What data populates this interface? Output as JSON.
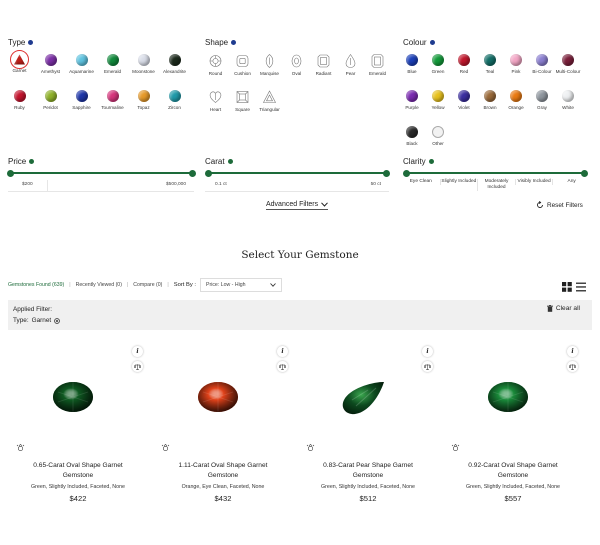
{
  "filters": {
    "type": {
      "title": "Type",
      "items": [
        {
          "label": "Garnet",
          "color": "#c0201a",
          "selected": true
        },
        {
          "label": "Amethyst",
          "color": "#7b2fa6"
        },
        {
          "label": "Aquamarine",
          "color": "#5fc3e0"
        },
        {
          "label": "Emerald",
          "color": "#118a3c"
        },
        {
          "label": "Moonstone",
          "color": "#d9dde8"
        },
        {
          "label": "Alexandrite",
          "color": "#1c2a1c"
        },
        {
          "label": "Ruby",
          "color": "#c4142e"
        },
        {
          "label": "Peridot",
          "color": "#8fb12a"
        },
        {
          "label": "Sapphire",
          "color": "#1d35a8"
        },
        {
          "label": "Tourmaline",
          "color": "#d6357c"
        },
        {
          "label": "Topaz",
          "color": "#e69a2a"
        },
        {
          "label": "Zircon",
          "color": "#1f9aa9"
        }
      ]
    },
    "shape": {
      "title": "Shape",
      "items": [
        {
          "label": "Round",
          "icon": "round-shape-icon"
        },
        {
          "label": "Cushion",
          "icon": "cushion-shape-icon"
        },
        {
          "label": "Marquise",
          "icon": "marquise-shape-icon"
        },
        {
          "label": "Oval",
          "icon": "oval-shape-icon"
        },
        {
          "label": "Radiant",
          "icon": "radiant-shape-icon"
        },
        {
          "label": "Pear",
          "icon": "pear-shape-icon"
        },
        {
          "label": "Emerald",
          "icon": "emerald-shape-icon"
        },
        {
          "label": "Heart",
          "icon": "heart-shape-icon"
        },
        {
          "label": "Square",
          "icon": "square-shape-icon"
        },
        {
          "label": "Triangular",
          "icon": "triangular-shape-icon"
        }
      ]
    },
    "colour": {
      "title": "Colour",
      "items": [
        {
          "label": "Blue",
          "color": "#1a3fb8"
        },
        {
          "label": "Green",
          "color": "#139a3a"
        },
        {
          "label": "Red",
          "color": "#c0172c"
        },
        {
          "label": "Teal",
          "color": "#136e67"
        },
        {
          "label": "Pink",
          "color": "#f3a6c5"
        },
        {
          "label": "Bi-Colour",
          "color": "#8b7fd0"
        },
        {
          "label": "Multi-Colour",
          "color": "#7a1f3a"
        },
        {
          "label": "Purple",
          "color": "#7a2ab0"
        },
        {
          "label": "Yellow",
          "color": "#e8c21e"
        },
        {
          "label": "Violet",
          "color": "#3b2ea0"
        },
        {
          "label": "Brown",
          "color": "#9a6a3a"
        },
        {
          "label": "Orange",
          "color": "#ea7a12"
        },
        {
          "label": "Gray",
          "color": "#8f969e"
        },
        {
          "label": "White",
          "color": "#eef0f2"
        },
        {
          "label": "Black",
          "color": "#2a2a2a"
        },
        {
          "label": "Other",
          "color": "#f2f2f2"
        }
      ]
    },
    "price": {
      "title": "Price",
      "min": "$200",
      "max": "$500,000"
    },
    "carat": {
      "title": "Carat",
      "min": "0.1 ct",
      "max": "50 ct"
    },
    "clarity": {
      "title": "Clarity",
      "options": [
        "Eye Clean",
        "Slightly Included",
        "Moderately Included",
        "Visibly Included",
        "Any"
      ]
    },
    "advanced_label": "Advanced Filters",
    "reset_label": "Reset Filters"
  },
  "heading": "Select Your Gemstone",
  "toolbar": {
    "found": "Gemstones Found (639)",
    "recent": "Recently Viewed (0)",
    "compare": "Compare (0)",
    "sort_label": "Sort By :",
    "sort_value": "Price: Low - High"
  },
  "applied": {
    "title": "Applied Filter:",
    "type_label": "Type:",
    "type_value": "Garnet",
    "clear_label": "Clear all"
  },
  "products": [
    {
      "title": "0.65-Carat Oval Shape Garnet Gemstone",
      "desc": "Green, Slightly Included, Faceted, None",
      "price": "$422",
      "gem_color": "#0f5a22",
      "shape": "oval"
    },
    {
      "title": "1.11-Carat Oval Shape Garnet Gemstone",
      "desc": "Orange, Eye Clean, Faceted, None",
      "price": "$432",
      "gem_color": "#e0421a",
      "shape": "oval"
    },
    {
      "title": "0.83-Carat Pear Shape Garnet Gemstone",
      "desc": "Green, Slightly Included, Faceted, None",
      "price": "$512",
      "gem_color": "#0d4a1f",
      "shape": "pear"
    },
    {
      "title": "0.92-Carat Oval Shape Garnet Gemstone",
      "desc": "Green, Slightly Included, Faceted, None",
      "price": "$557",
      "gem_color": "#1a8a3a",
      "shape": "oval"
    }
  ]
}
